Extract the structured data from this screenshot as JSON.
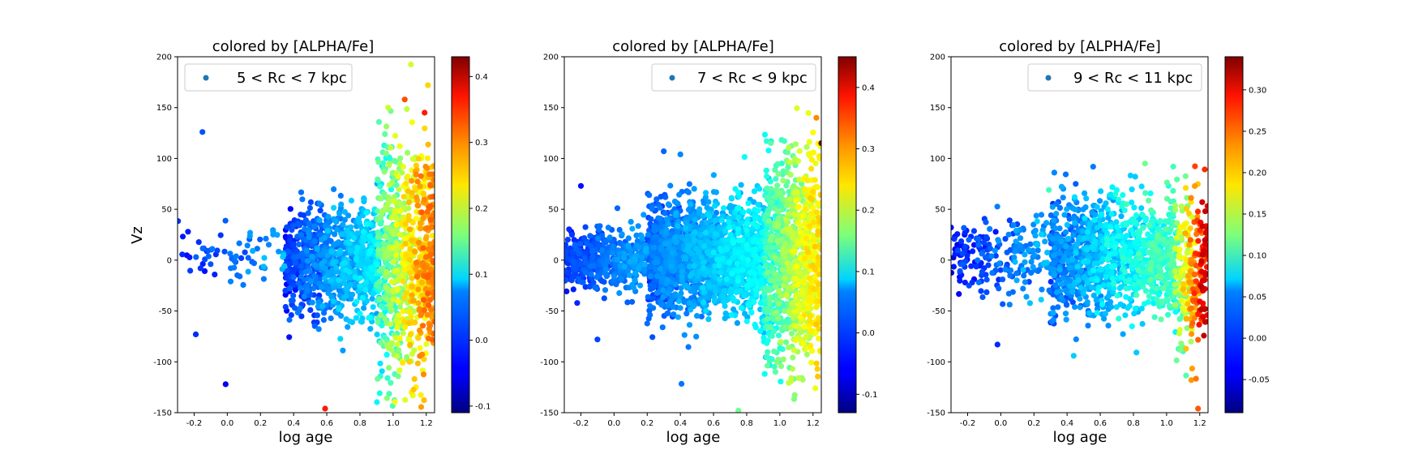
{
  "chart_data": [
    {
      "type": "scatter",
      "title": "colored by [ALPHA/Fe]",
      "xlabel": "log age",
      "ylabel": "Vz",
      "xlim": [
        -0.3,
        1.25
      ],
      "ylim": [
        -150,
        200
      ],
      "xticks": [
        "-0.2",
        "0.0",
        "0.2",
        "0.4",
        "0.6",
        "0.8",
        "1.0",
        "1.2"
      ],
      "xtick_values": [
        -0.2,
        0.0,
        0.2,
        0.4,
        0.6,
        0.8,
        1.0,
        1.2
      ],
      "yticks": [
        "-150",
        "-100",
        "-50",
        "0",
        "50",
        "100",
        "150",
        "200"
      ],
      "ytick_values": [
        -150,
        -100,
        -50,
        0,
        50,
        100,
        150,
        200
      ],
      "legend": {
        "label": "5 < Rc < 7 kpc",
        "placement": "upper left"
      },
      "colorbar": {
        "label": "[ALPHA/Fe]",
        "range": [
          -0.11,
          0.43
        ],
        "ticks": [
          "-0.1",
          "0.0",
          "0.1",
          "0.2",
          "0.3",
          "0.4"
        ],
        "tick_values": [
          -0.1,
          0.0,
          0.1,
          0.2,
          0.3,
          0.4
        ],
        "colormap": "jet"
      },
      "distribution": {
        "description_points": [
          {
            "x": -0.15,
            "y": 126,
            "c": 0.0
          },
          {
            "x": -0.01,
            "y": -122,
            "c": -0.05
          },
          {
            "x": -0.19,
            "y": -73,
            "c": -0.02
          },
          {
            "x": 0.59,
            "y": -146,
            "c": 0.35
          },
          {
            "x": 1.21,
            "y": 172,
            "c": 0.25
          },
          {
            "x": 1.07,
            "y": 158,
            "c": 0.32
          },
          {
            "x": 1.19,
            "y": 145,
            "c": 0.35
          },
          {
            "x": 0.97,
            "y": 150,
            "c": 0.2
          }
        ],
        "bulk": [
          {
            "x": [
              -0.3,
              0.35
            ],
            "y": [
              -30,
              40
            ],
            "c": [
              -0.05,
              0.05
            ],
            "n": 70
          },
          {
            "x": [
              0.35,
              0.9
            ],
            "y": [
              -60,
              55
            ],
            "c": [
              -0.05,
              0.08
            ],
            "n": 900
          },
          {
            "x": [
              0.9,
              1.25
            ],
            "y": [
              -120,
              120
            ],
            "c": [
              0.05,
              0.3
            ],
            "n": 900
          }
        ]
      }
    },
    {
      "type": "scatter",
      "title": "colored by [ALPHA/Fe]",
      "xlabel": "log age",
      "ylabel": "",
      "xlim": [
        -0.3,
        1.25
      ],
      "ylim": [
        -150,
        200
      ],
      "xticks": [
        "-0.2",
        "0.0",
        "0.2",
        "0.4",
        "0.6",
        "0.8",
        "1.0",
        "1.2"
      ],
      "xtick_values": [
        -0.2,
        0.0,
        0.2,
        0.4,
        0.6,
        0.8,
        1.0,
        1.2
      ],
      "yticks": [
        "-150",
        "-100",
        "-50",
        "0",
        "50",
        "100",
        "150",
        "200"
      ],
      "ytick_values": [
        -150,
        -100,
        -50,
        0,
        50,
        100,
        150,
        200
      ],
      "legend": {
        "label": "7 < Rc < 9 kpc",
        "placement": "upper right"
      },
      "colorbar": {
        "label": "[ALPHA/Fe]",
        "range": [
          -0.13,
          0.45
        ],
        "ticks": [
          "-0.1",
          "0.0",
          "0.1",
          "0.2",
          "0.3",
          "0.4"
        ],
        "tick_values": [
          -0.1,
          0.0,
          0.1,
          0.2,
          0.3,
          0.4
        ],
        "colormap": "jet"
      },
      "distribution": {
        "description_points": [
          {
            "x": -0.2,
            "y": 73,
            "c": -0.05
          },
          {
            "x": 0.3,
            "y": 107,
            "c": 0.0
          },
          {
            "x": 0.4,
            "y": 104,
            "c": 0.02
          },
          {
            "x": -0.1,
            "y": -78,
            "c": -0.02
          },
          {
            "x": 0.75,
            "y": -148,
            "c": 0.15
          },
          {
            "x": 1.22,
            "y": 140,
            "c": 0.3
          },
          {
            "x": 1.25,
            "y": 115,
            "c": 0.45
          }
        ],
        "bulk": [
          {
            "x": [
              -0.3,
              0.2
            ],
            "y": [
              -30,
              30
            ],
            "c": [
              -0.05,
              0.03
            ],
            "n": 500
          },
          {
            "x": [
              0.2,
              0.9
            ],
            "y": [
              -55,
              60
            ],
            "c": [
              -0.03,
              0.08
            ],
            "n": 1800
          },
          {
            "x": [
              0.9,
              1.25
            ],
            "y": [
              -110,
              110
            ],
            "c": [
              0.05,
              0.25
            ],
            "n": 1100
          }
        ]
      }
    },
    {
      "type": "scatter",
      "title": "colored by [ALPHA/Fe]",
      "xlabel": "log age",
      "ylabel": "",
      "xlim": [
        -0.3,
        1.25
      ],
      "ylim": [
        -150,
        200
      ],
      "xticks": [
        "-0.2",
        "0.0",
        "0.2",
        "0.4",
        "0.6",
        "0.8",
        "1.0",
        "1.2"
      ],
      "xtick_values": [
        -0.2,
        0.0,
        0.2,
        0.4,
        0.6,
        0.8,
        1.0,
        1.2
      ],
      "yticks": [
        "-150",
        "-100",
        "-50",
        "0",
        "50",
        "100",
        "150",
        "200"
      ],
      "ytick_values": [
        -150,
        -100,
        -50,
        0,
        50,
        100,
        150,
        200
      ],
      "legend": {
        "label": "9 < Rc < 11 kpc",
        "placement": "upper right"
      },
      "colorbar": {
        "label": "[ALPHA/Fe]",
        "range": [
          -0.09,
          0.34
        ],
        "ticks": [
          "-0.05",
          "0.00",
          "0.05",
          "0.10",
          "0.15",
          "0.20",
          "0.25",
          "0.30"
        ],
        "tick_values": [
          -0.05,
          0.0,
          0.05,
          0.1,
          0.15,
          0.2,
          0.25,
          0.3
        ],
        "colormap": "jet"
      },
      "distribution": {
        "description_points": [
          {
            "x": -0.02,
            "y": -83,
            "c": -0.02
          },
          {
            "x": 0.29,
            "y": 69,
            "c": 0.1
          },
          {
            "x": 0.87,
            "y": 95,
            "c": 0.12
          },
          {
            "x": 1.04,
            "y": 92,
            "c": 0.1
          },
          {
            "x": 0.44,
            "y": -94,
            "c": 0.05
          },
          {
            "x": 1.19,
            "y": -146,
            "c": 0.25
          }
        ],
        "bulk": [
          {
            "x": [
              -0.3,
              0.3
            ],
            "y": [
              -40,
              45
            ],
            "c": [
              -0.05,
              0.04
            ],
            "n": 220
          },
          {
            "x": [
              0.3,
              1.05
            ],
            "y": [
              -60,
              65
            ],
            "c": [
              -0.02,
              0.1
            ],
            "n": 1200
          },
          {
            "x": [
              1.05,
              1.25
            ],
            "y": [
              -95,
              70
            ],
            "c": [
              0.05,
              0.3
            ],
            "n": 300
          }
        ]
      }
    }
  ]
}
